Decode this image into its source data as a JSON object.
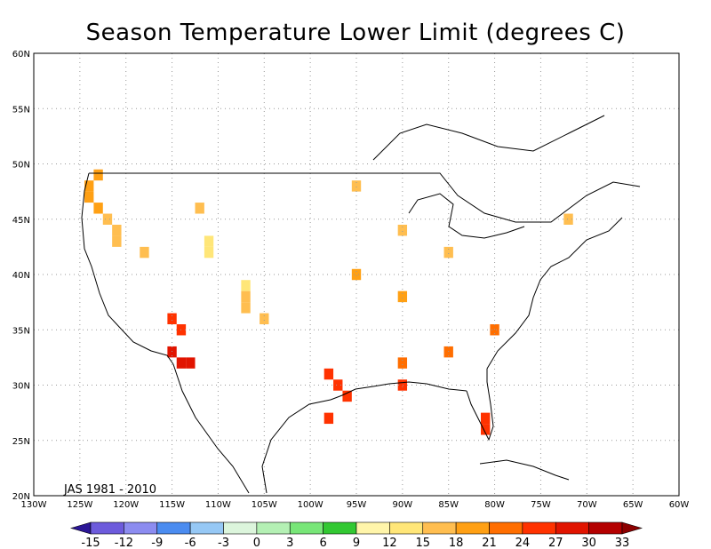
{
  "title": "Season Temperature Lower Limit (degrees C)",
  "period_label": "JAS 1981 - 2010",
  "lat_labels": [
    "60N",
    "55N",
    "50N",
    "45N",
    "40N",
    "35N",
    "30N",
    "25N",
    "20N"
  ],
  "lon_labels": [
    "130W",
    "125W",
    "120W",
    "115W",
    "110W",
    "105W",
    "100W",
    "95W",
    "90W",
    "85W",
    "80W",
    "75W",
    "70W",
    "65W",
    "60W"
  ],
  "map_extent": {
    "lon_min": -130,
    "lon_max": -60,
    "lat_min": 20,
    "lat_max": 60
  },
  "colorbar": {
    "tick_labels": [
      "-15",
      "-12",
      "-9",
      "-6",
      "-3",
      "0",
      "3",
      "6",
      "9",
      "12",
      "15",
      "18",
      "21",
      "24",
      "27",
      "30",
      "33"
    ],
    "colors": [
      "#2b1696",
      "#6d5bdc",
      "#8c8cf0",
      "#4b8cf0",
      "#96c8f5",
      "#dcf5dc",
      "#b4f0b4",
      "#78e678",
      "#32c832",
      "#fff5aa",
      "#ffe678",
      "#ffbe50",
      "#ffa014",
      "#ff6e00",
      "#ff3200",
      "#e11400",
      "#b40000",
      "#8c0000"
    ]
  },
  "grid_cells": [
    {
      "lat": 49,
      "lon": -123,
      "value": 20
    },
    {
      "lat": 48,
      "lon": -124,
      "value": 19
    },
    {
      "lat": 47,
      "lon": -124,
      "value": 18
    },
    {
      "lat": 46,
      "lon": -123,
      "value": 19
    },
    {
      "lat": 45,
      "lon": -122,
      "value": 17
    },
    {
      "lat": 44,
      "lon": -121,
      "value": 16
    },
    {
      "lat": 43,
      "lon": -121,
      "value": 15
    },
    {
      "lat": 42,
      "lon": -118,
      "value": 16
    },
    {
      "lat": 46,
      "lon": -112,
      "value": 15
    },
    {
      "lat": 43,
      "lon": -111,
      "value": 14
    },
    {
      "lat": 42,
      "lon": -111,
      "value": 14
    },
    {
      "lat": 39,
      "lon": -107,
      "value": 14
    },
    {
      "lat": 38,
      "lon": -107,
      "value": 15
    },
    {
      "lat": 37,
      "lon": -107,
      "value": 15
    },
    {
      "lat": 36,
      "lon": -105,
      "value": 16
    },
    {
      "lat": 33,
      "lon": -115,
      "value": 28
    },
    {
      "lat": 32,
      "lon": -114,
      "value": 29
    },
    {
      "lat": 32,
      "lon": -113,
      "value": 28
    },
    {
      "lat": 35,
      "lon": -114,
      "value": 26
    },
    {
      "lat": 36,
      "lon": -115,
      "value": 25
    },
    {
      "lat": 31,
      "lon": -98,
      "value": 25
    },
    {
      "lat": 30,
      "lon": -97,
      "value": 25
    },
    {
      "lat": 29,
      "lon": -96,
      "value": 25
    },
    {
      "lat": 27,
      "lon": -98,
      "value": 24
    },
    {
      "lat": 26,
      "lon": -81,
      "value": 25
    },
    {
      "lat": 27,
      "lon": -81,
      "value": 24
    },
    {
      "lat": 30,
      "lon": -90,
      "value": 24
    },
    {
      "lat": 32,
      "lon": -90,
      "value": 23
    },
    {
      "lat": 33,
      "lon": -85,
      "value": 22
    },
    {
      "lat": 35,
      "lon": -80,
      "value": 21
    },
    {
      "lat": 38,
      "lon": -90,
      "value": 20
    },
    {
      "lat": 40,
      "lon": -95,
      "value": 19
    },
    {
      "lat": 42,
      "lon": -85,
      "value": 17
    },
    {
      "lat": 44,
      "lon": -90,
      "value": 16
    },
    {
      "lat": 45,
      "lon": -72,
      "value": 15
    },
    {
      "lat": 48,
      "lon": -95,
      "value": 16
    }
  ]
}
